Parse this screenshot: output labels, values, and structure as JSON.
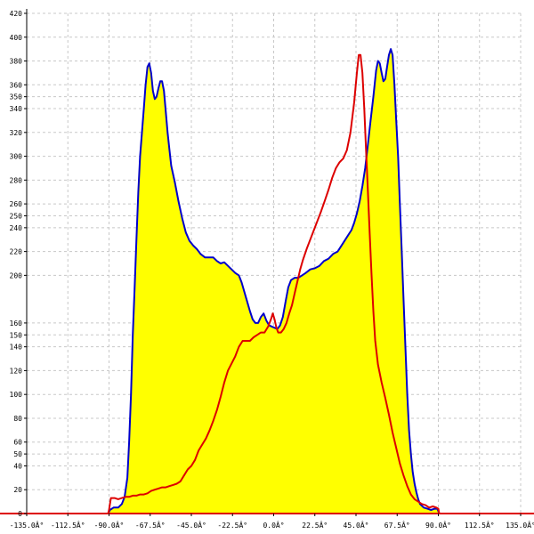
{
  "chart_data": {
    "type": "area",
    "title": "",
    "xlabel": "",
    "ylabel": "",
    "xlim": [
      -135,
      135
    ],
    "ylim": [
      0,
      420
    ],
    "grid": true,
    "x_ticks": [
      {
        "value": -135,
        "label": "-135.0Â°"
      },
      {
        "value": -112.5,
        "label": "-112.5Â°"
      },
      {
        "value": -90,
        "label": "-90.0Â°"
      },
      {
        "value": -67.5,
        "label": "-67.5Â°"
      },
      {
        "value": -45,
        "label": "-45.0Â°"
      },
      {
        "value": -22.5,
        "label": "-22.5Â°"
      },
      {
        "value": 0,
        "label": "0.0Â°"
      },
      {
        "value": 22.5,
        "label": "22.5Â°"
      },
      {
        "value": 45,
        "label": "45.0Â°"
      },
      {
        "value": 67.5,
        "label": "67.5Â°"
      },
      {
        "value": 90,
        "label": "90.0Â°"
      },
      {
        "value": 112.5,
        "label": "112.5Â°"
      },
      {
        "value": 135,
        "label": "135.0Â°"
      }
    ],
    "y_ticks": [
      {
        "value": 0,
        "label": "0"
      },
      {
        "value": 20,
        "label": "20"
      },
      {
        "value": 40,
        "label": "40"
      },
      {
        "value": 50,
        "label": "50"
      },
      {
        "value": 60,
        "label": "60"
      },
      {
        "value": 80,
        "label": "80"
      },
      {
        "value": 100,
        "label": "100"
      },
      {
        "value": 120,
        "label": "120"
      },
      {
        "value": 140,
        "label": "140"
      },
      {
        "value": 150,
        "label": "150"
      },
      {
        "value": 160,
        "label": "160"
      },
      {
        "value": 200,
        "label": "200"
      },
      {
        "value": 220,
        "label": "220"
      },
      {
        "value": 240,
        "label": "240"
      },
      {
        "value": 250,
        "label": "250"
      },
      {
        "value": 260,
        "label": "260"
      },
      {
        "value": 280,
        "label": "280"
      },
      {
        "value": 300,
        "label": "300"
      },
      {
        "value": 320,
        "label": "320"
      },
      {
        "value": 340,
        "label": "340"
      },
      {
        "value": 350,
        "label": "350"
      },
      {
        "value": 360,
        "label": "360"
      },
      {
        "value": 380,
        "label": "380"
      },
      {
        "value": 400,
        "label": "400"
      },
      {
        "value": 420,
        "label": "420"
      }
    ],
    "series": [
      {
        "color": "#0000cc",
        "fill": "#ffff00",
        "points": [
          [
            -135,
            0
          ],
          [
            -90.5,
            0
          ],
          [
            -89.5,
            3
          ],
          [
            -87.5,
            5
          ],
          [
            -85,
            5
          ],
          [
            -83,
            8
          ],
          [
            -81.5,
            14
          ],
          [
            -80,
            30
          ],
          [
            -79,
            60
          ],
          [
            -78,
            100
          ],
          [
            -77,
            150
          ],
          [
            -76,
            190
          ],
          [
            -75,
            230
          ],
          [
            -74,
            270
          ],
          [
            -73,
            300
          ],
          [
            -72,
            320
          ],
          [
            -71,
            340
          ],
          [
            -70,
            360
          ],
          [
            -69,
            375
          ],
          [
            -68,
            378
          ],
          [
            -67,
            370
          ],
          [
            -66,
            355
          ],
          [
            -65,
            348
          ],
          [
            -64,
            350
          ],
          [
            -63,
            357
          ],
          [
            -62,
            363
          ],
          [
            -61,
            363
          ],
          [
            -60,
            355
          ],
          [
            -59,
            338
          ],
          [
            -58,
            320
          ],
          [
            -57,
            306
          ],
          [
            -56,
            292
          ],
          [
            -54,
            278
          ],
          [
            -52,
            262
          ],
          [
            -50,
            248
          ],
          [
            -48,
            236
          ],
          [
            -46,
            229
          ],
          [
            -44,
            225
          ],
          [
            -42,
            222
          ],
          [
            -40,
            218
          ],
          [
            -37.5,
            215
          ],
          [
            -35,
            215
          ],
          [
            -33,
            215
          ],
          [
            -31,
            212
          ],
          [
            -29,
            210
          ],
          [
            -27,
            211
          ],
          [
            -25,
            208
          ],
          [
            -23,
            205
          ],
          [
            -21,
            202
          ],
          [
            -19,
            200
          ],
          [
            -17.5,
            194
          ],
          [
            -16,
            186
          ],
          [
            -14.5,
            178
          ],
          [
            -13,
            170
          ],
          [
            -11.5,
            163
          ],
          [
            -10,
            160
          ],
          [
            -8.5,
            160
          ],
          [
            -7,
            165
          ],
          [
            -5.5,
            168
          ],
          [
            -4,
            162
          ],
          [
            -2.5,
            158
          ],
          [
            -1,
            157
          ],
          [
            0.5,
            156
          ],
          [
            2,
            155
          ],
          [
            3.5,
            158
          ],
          [
            5,
            165
          ],
          [
            6.5,
            178
          ],
          [
            8,
            190
          ],
          [
            9.5,
            196
          ],
          [
            11.5,
            198
          ],
          [
            13.5,
            198
          ],
          [
            15.5,
            200
          ],
          [
            17.5,
            202
          ],
          [
            20,
            205
          ],
          [
            22.5,
            206
          ],
          [
            25,
            208
          ],
          [
            27.5,
            212
          ],
          [
            30,
            214
          ],
          [
            32.5,
            218
          ],
          [
            35,
            220
          ],
          [
            37.5,
            226
          ],
          [
            40,
            232
          ],
          [
            42.5,
            238
          ],
          [
            44,
            244
          ],
          [
            45.5,
            252
          ],
          [
            47,
            262
          ],
          [
            48.5,
            275
          ],
          [
            50,
            290
          ],
          [
            51.5,
            310
          ],
          [
            53,
            330
          ],
          [
            54.5,
            350
          ],
          [
            56,
            372
          ],
          [
            57,
            380
          ],
          [
            58,
            378
          ],
          [
            59,
            370
          ],
          [
            60,
            363
          ],
          [
            61,
            365
          ],
          [
            62,
            375
          ],
          [
            63,
            385
          ],
          [
            64,
            390
          ],
          [
            65,
            385
          ],
          [
            66,
            360
          ],
          [
            67,
            330
          ],
          [
            68,
            300
          ],
          [
            69,
            260
          ],
          [
            70,
            220
          ],
          [
            71,
            180
          ],
          [
            72,
            140
          ],
          [
            73,
            100
          ],
          [
            74,
            70
          ],
          [
            75,
            50
          ],
          [
            76,
            35
          ],
          [
            77,
            25
          ],
          [
            78,
            18
          ],
          [
            79,
            12
          ],
          [
            80,
            8
          ],
          [
            82,
            5
          ],
          [
            84,
            4
          ],
          [
            86,
            3
          ],
          [
            88,
            4
          ],
          [
            89.5,
            4
          ],
          [
            90.5,
            0
          ],
          [
            135,
            0
          ]
        ]
      },
      {
        "color": "#dd0000",
        "fill": "none",
        "points": [
          [
            -135,
            0
          ],
          [
            -90.5,
            0
          ],
          [
            -90,
            3
          ],
          [
            -89,
            13
          ],
          [
            -87,
            13
          ],
          [
            -85,
            12
          ],
          [
            -83,
            13
          ],
          [
            -81,
            14
          ],
          [
            -79,
            14
          ],
          [
            -77,
            15
          ],
          [
            -75,
            15
          ],
          [
            -73,
            16
          ],
          [
            -71,
            16
          ],
          [
            -69,
            17
          ],
          [
            -67,
            19
          ],
          [
            -65,
            20
          ],
          [
            -63,
            21
          ],
          [
            -61,
            22
          ],
          [
            -59,
            22
          ],
          [
            -57,
            23
          ],
          [
            -55,
            24
          ],
          [
            -53,
            25
          ],
          [
            -51,
            27
          ],
          [
            -49,
            32
          ],
          [
            -47,
            37
          ],
          [
            -45,
            40
          ],
          [
            -43,
            45
          ],
          [
            -41,
            53
          ],
          [
            -39,
            58
          ],
          [
            -37,
            63
          ],
          [
            -35,
            70
          ],
          [
            -33,
            78
          ],
          [
            -31,
            87
          ],
          [
            -29,
            98
          ],
          [
            -27,
            110
          ],
          [
            -25,
            120
          ],
          [
            -23,
            126
          ],
          [
            -21,
            132
          ],
          [
            -19,
            140
          ],
          [
            -17,
            145
          ],
          [
            -15,
            145
          ],
          [
            -13,
            145
          ],
          [
            -11,
            148
          ],
          [
            -9,
            150
          ],
          [
            -7,
            152
          ],
          [
            -5,
            152
          ],
          [
            -3,
            157
          ],
          [
            -1.5,
            163
          ],
          [
            -0.5,
            168
          ],
          [
            0.5,
            163
          ],
          [
            1.5,
            156
          ],
          [
            2.5,
            152
          ],
          [
            4,
            152
          ],
          [
            5.5,
            155
          ],
          [
            7,
            160
          ],
          [
            8.5,
            168
          ],
          [
            10,
            175
          ],
          [
            11.5,
            185
          ],
          [
            13,
            195
          ],
          [
            14.5,
            205
          ],
          [
            16,
            213
          ],
          [
            18,
            222
          ],
          [
            20,
            230
          ],
          [
            22,
            238
          ],
          [
            24,
            246
          ],
          [
            26,
            254
          ],
          [
            28,
            263
          ],
          [
            30,
            272
          ],
          [
            32,
            282
          ],
          [
            34,
            290
          ],
          [
            36,
            295
          ],
          [
            38,
            298
          ],
          [
            40,
            305
          ],
          [
            42,
            320
          ],
          [
            44,
            345
          ],
          [
            45.5,
            370
          ],
          [
            46.5,
            385
          ],
          [
            47.5,
            385
          ],
          [
            48.5,
            370
          ],
          [
            49.5,
            340
          ],
          [
            50.5,
            305
          ],
          [
            51.5,
            270
          ],
          [
            52.5,
            235
          ],
          [
            53.5,
            200
          ],
          [
            54.5,
            170
          ],
          [
            55.5,
            145
          ],
          [
            57,
            125
          ],
          [
            59,
            110
          ],
          [
            61,
            97
          ],
          [
            63,
            83
          ],
          [
            65,
            68
          ],
          [
            67,
            55
          ],
          [
            69,
            42
          ],
          [
            71,
            32
          ],
          [
            73,
            23
          ],
          [
            75,
            16
          ],
          [
            77,
            12
          ],
          [
            79,
            10
          ],
          [
            81,
            8
          ],
          [
            83,
            7
          ],
          [
            85,
            5
          ],
          [
            87,
            6
          ],
          [
            89,
            5
          ],
          [
            90,
            4
          ],
          [
            90.5,
            0
          ],
          [
            135,
            0
          ]
        ]
      }
    ]
  }
}
